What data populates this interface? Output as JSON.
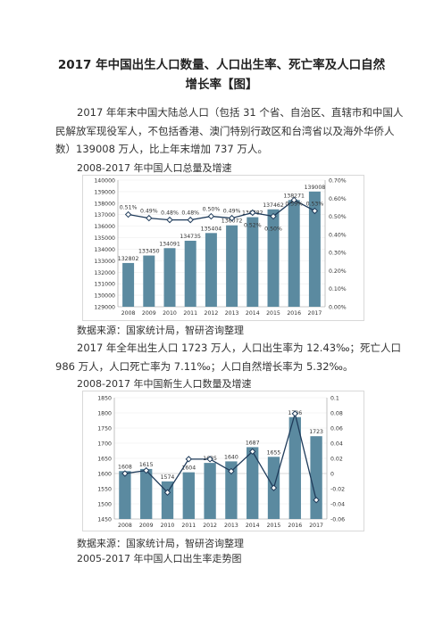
{
  "doc": {
    "title_line1": "2017 年中国出生人口数量、人口出生率、死亡率及人口自然",
    "title_line2": "增长率【图】",
    "para1": "2017 年年末中国大陆总人口（包括 31 个省、自治区、直辖市和中国人民解放军现役军人，不包括香港、澳门特别行政区和台湾省以及海外华侨人数）139008 万人，比上年末增加 737 万人。",
    "caption1": "2008-2017 年中国人口总量及增速",
    "source1": "数据来源：国家统计局，智研咨询整理",
    "para2": "2017 年全年出生人口 1723 万人，人口出生率为 12.43‰；死亡人口 986 万人，人口死亡率为 7.11‰；人口自然增长率为 5.32‰。",
    "caption2": "2008-2017 年中国新生人口数量及增速",
    "source2": "数据来源：国家统计局，智研咨询整理",
    "caption3": "2005-2017 年中国人口出生率走势图"
  },
  "chart_data": [
    {
      "type": "bar",
      "categories": [
        "2008",
        "2009",
        "2010",
        "2011",
        "2012",
        "2013",
        "2014",
        "2015",
        "2016",
        "2017"
      ],
      "values": [
        132802,
        133450,
        134091,
        134735,
        135404,
        136072,
        136782,
        137462,
        138271,
        139008
      ],
      "value_labels": [
        "132802",
        "133450",
        "134091",
        "134735",
        "135404",
        "136072",
        "136782",
        "137462",
        "138271",
        "139008"
      ],
      "ylim": [
        129000,
        140000
      ],
      "yticks": [
        "129000",
        "130000",
        "131000",
        "132000",
        "133000",
        "134000",
        "135000",
        "136000",
        "137000",
        "138000",
        "139000",
        "140000"
      ],
      "line": {
        "values": [
          0.51,
          0.49,
          0.48,
          0.48,
          0.5,
          0.49,
          0.52,
          0.5,
          0.59,
          0.53
        ],
        "labels": [
          "0.51%",
          "0.49%",
          "0.48%",
          "0.48%",
          "0.50%",
          "0.49%",
          "0.52%",
          "0.50%",
          "0.59%",
          "0.53%"
        ],
        "ylim": [
          0,
          0.7
        ],
        "yticks": [
          "0.00%",
          "0.10%",
          "0.20%",
          "0.30%",
          "0.40%",
          "0.50%",
          "0.60%",
          "0.70%"
        ]
      },
      "bar_color": "#5b8aa0",
      "line_color": "#1f3b5a"
    },
    {
      "type": "bar",
      "categories": [
        "2008",
        "2009",
        "2010",
        "2011",
        "2012",
        "2013",
        "2014",
        "2015",
        "2016",
        "2017"
      ],
      "values": [
        1608,
        1615,
        1574,
        1604,
        1635,
        1640,
        1687,
        1655,
        1786,
        1723
      ],
      "value_labels": [
        "1608",
        "1615",
        "1574",
        "1604",
        "1635",
        "1640",
        "1687",
        "1655",
        "1786",
        "1723"
      ],
      "ylim": [
        1450,
        1850
      ],
      "yticks": [
        "1450",
        "1500",
        "1550",
        "1600",
        "1650",
        "1700",
        "1750",
        "1800",
        "1850"
      ],
      "line": {
        "values": [
          0.0,
          0.004,
          -0.025,
          0.019,
          0.019,
          0.003,
          0.029,
          -0.019,
          0.079,
          -0.035
        ],
        "ylim": [
          -0.06,
          0.1
        ],
        "yticks": [
          "-0.06",
          "-0.04",
          "-0.02",
          "0",
          "0.02",
          "0.04",
          "0.06",
          "0.08",
          "0.1"
        ]
      },
      "bar_color": "#5b8aa0",
      "line_color": "#1f3b5a"
    }
  ]
}
